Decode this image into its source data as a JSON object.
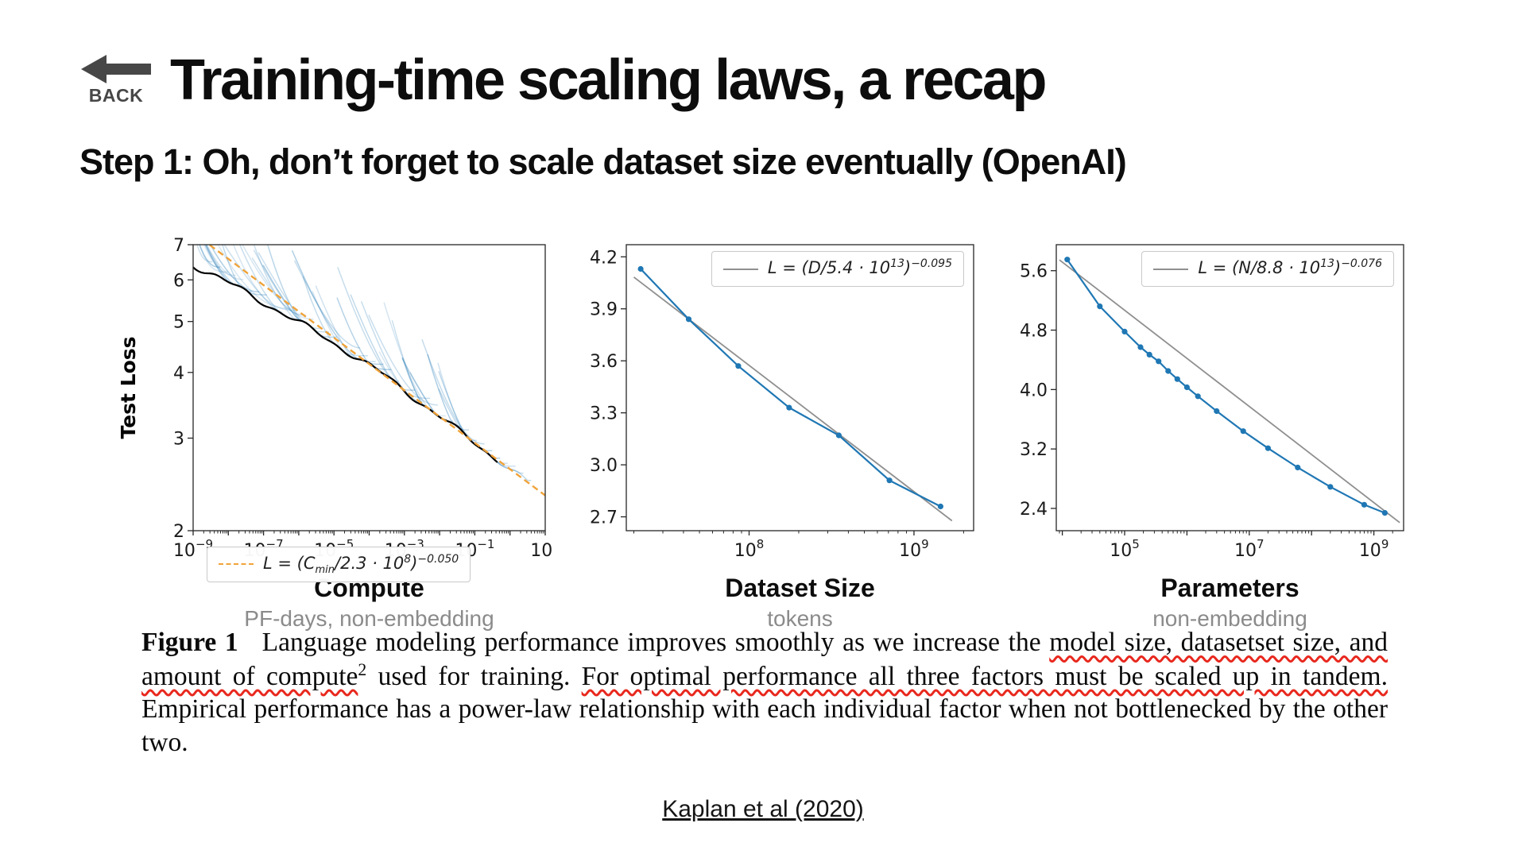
{
  "header": {
    "back_label": "BACK",
    "title": "Training-time scaling laws, a recap",
    "subtitle": "Step 1: Oh, don’t forget to scale dataset size eventually (OpenAI)"
  },
  "caption": {
    "label": "Figure 1",
    "parts": [
      {
        "text": "Language modeling performance improves smoothly as we increase the ",
        "underline": false
      },
      {
        "text": "model size, datasetset size, and amount of compute",
        "underline": true
      },
      {
        "text": "2",
        "underline": false,
        "sup": true
      },
      {
        "text": " used for training.  ",
        "underline": false
      },
      {
        "text": "For optimal performance all three factors must be scaled up in tandem.",
        "underline": true
      },
      {
        "text": "  Empirical performance has a power-law relationship with each individual factor when not bottlenecked by the other two.",
        "underline": false
      }
    ]
  },
  "citation": {
    "label": "Kaplan et al (2020)"
  },
  "colors": {
    "accent_blue": "#1f77b4",
    "fit_gray": "#8f8f8f",
    "dashed_orange": "#f0a33a",
    "underline_red": "#e8281e",
    "envelope_black": "#000000"
  },
  "chart_data": [
    {
      "type": "line",
      "title": "Compute",
      "subtitle": "PF-days, non-embedding",
      "ylabel": "Test Loss",
      "x_scale": "log",
      "y_scale": "log",
      "x_domain": [
        1e-09,
        10
      ],
      "y_domain": [
        2,
        7
      ],
      "x_tick_exponents": [
        -9,
        -7,
        -5,
        -3,
        -1,
        1
      ],
      "y_ticks": [
        2,
        3,
        4,
        5,
        6,
        7
      ],
      "fit": {
        "scale": 230000000.0,
        "exponent": -0.05
      },
      "fit_range": [
        1e-09,
        10
      ],
      "legend": {
        "p1": "L = (C",
        "sub": "min",
        "p2": "/2.3 · 10",
        "sup1": "8",
        "p3": ")",
        "sup2": "−0.050"
      },
      "style": {
        "kind": "loss-curves",
        "n_curves": 42
      }
    },
    {
      "type": "line",
      "title": "Dataset Size",
      "subtitle": "tokens",
      "x_scale": "log",
      "y_scale": "linear",
      "x_domain": [
        18000000.0,
        2300000000.0
      ],
      "y_domain": [
        2.62,
        4.27
      ],
      "x_tick_exponents": [
        8,
        9
      ],
      "y_ticks": [
        2.7,
        3.0,
        3.3,
        3.6,
        3.9,
        4.2
      ],
      "fit": {
        "scale": 54000000000000.0,
        "exponent": -0.095
      },
      "fit_range": [
        20000000.0,
        1700000000.0
      ],
      "legend": {
        "p1": "L = (D",
        "sub": "",
        "p2": "/5.4 · 10",
        "sup1": "13",
        "p3": ")",
        "sup2": "−0.095"
      },
      "points": [
        [
          22000000.0,
          4.13
        ],
        [
          43000000.0,
          3.84
        ],
        [
          86000000.0,
          3.57
        ],
        [
          175000000.0,
          3.33
        ],
        [
          350000000.0,
          3.17
        ],
        [
          710000000.0,
          2.91
        ],
        [
          1450000000.0,
          2.76
        ]
      ],
      "style": {
        "kind": "points-fit"
      }
    },
    {
      "type": "line",
      "title": "Parameters",
      "subtitle": "non-embedding",
      "x_scale": "log",
      "y_scale": "linear",
      "x_domain": [
        8000.0,
        3000000000.0
      ],
      "y_domain": [
        2.1,
        5.95
      ],
      "x_tick_exponents": [
        5,
        7,
        9
      ],
      "y_ticks": [
        2.4,
        3.2,
        4.0,
        4.8,
        5.6
      ],
      "fit": {
        "scale": 88000000000000.0,
        "exponent": -0.076
      },
      "fit_range": [
        9000.0,
        2600000000.0
      ],
      "legend": {
        "p1": "L = (N",
        "sub": "",
        "p2": "/8.8 · 10",
        "sup1": "13",
        "p3": ")",
        "sup2": "−0.076"
      },
      "points": [
        [
          12000.0,
          5.75
        ],
        [
          40000.0,
          5.12
        ],
        [
          100000.0,
          4.78
        ],
        [
          180000.0,
          4.57
        ],
        [
          250000.0,
          4.47
        ],
        [
          350000.0,
          4.38
        ],
        [
          500000.0,
          4.25
        ],
        [
          700000.0,
          4.14
        ],
        [
          1000000.0,
          4.03
        ],
        [
          1500000.0,
          3.91
        ],
        [
          3000000.0,
          3.71
        ],
        [
          8000000.0,
          3.44
        ],
        [
          20000000.0,
          3.21
        ],
        [
          60000000.0,
          2.95
        ],
        [
          200000000.0,
          2.69
        ],
        [
          700000000.0,
          2.45
        ],
        [
          1500000000.0,
          2.34
        ]
      ],
      "style": {
        "kind": "points-fit"
      }
    }
  ]
}
